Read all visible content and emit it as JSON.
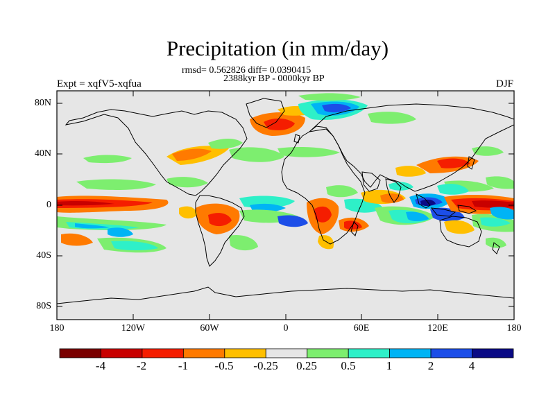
{
  "title": "Precipitation (in mm/day)",
  "stats_line": "rmsd= 0.562826 diff= 0.0390415",
  "period": "2388kyr BP - 0000kyr BP",
  "expt_label": "Expt = xqfV5-xqfua",
  "season": "DJF",
  "lat_ticks": [
    "80N",
    "40N",
    "0",
    "40S",
    "80S"
  ],
  "lon_ticks": [
    "180",
    "120W",
    "60W",
    "0",
    "60E",
    "120E",
    "180"
  ],
  "colorbar": {
    "labels": [
      "-4",
      "-2",
      "-1",
      "-0.5",
      "-0.25",
      "0.25",
      "0.5",
      "1",
      "2",
      "4"
    ],
    "colors": [
      "#7a0000",
      "#c80000",
      "#f51d00",
      "#ff7a00",
      "#ffbf00",
      "#e6e6e6",
      "#7dee6f",
      "#2ef0c8",
      "#00b4f5",
      "#1c4ee8",
      "#0a0a85"
    ]
  },
  "colors": {
    "ocean_neutral": "#e6e6e6",
    "coast": "#000000"
  }
}
